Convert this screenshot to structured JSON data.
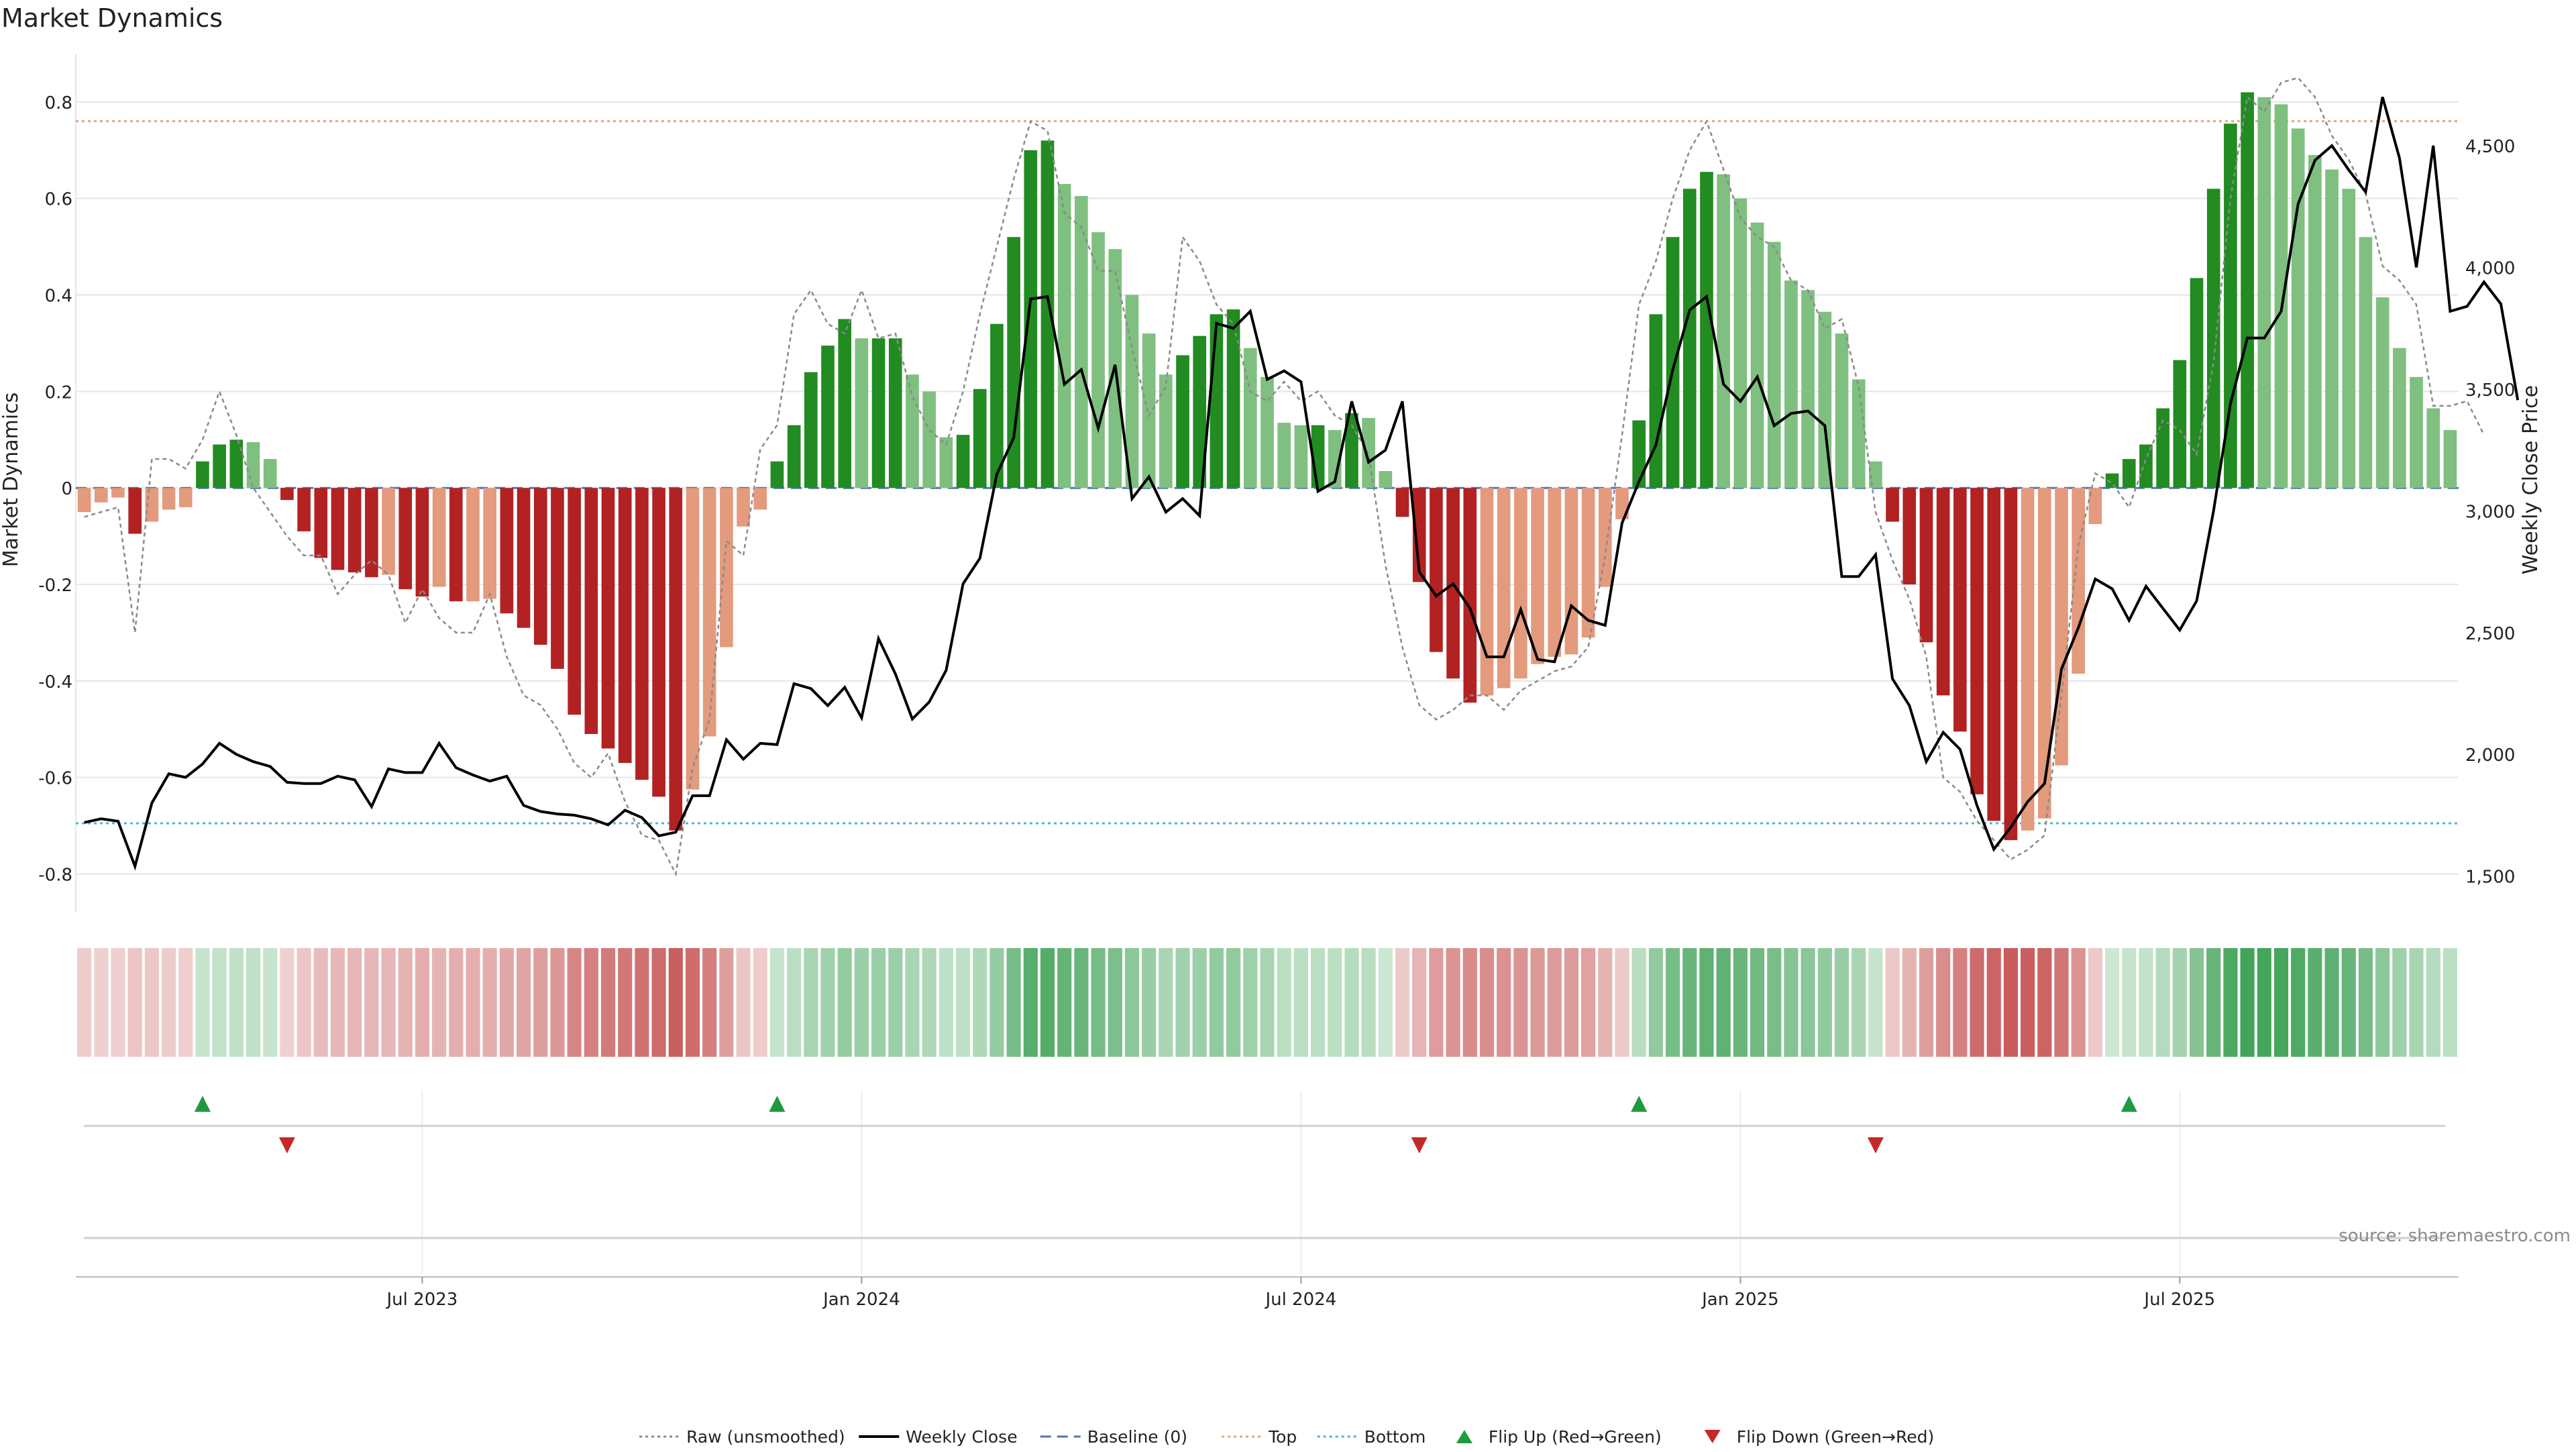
{
  "title": "Market Dynamics",
  "source": "source: sharemaestro.com",
  "colors": {
    "up_strong": "#228b22",
    "up_weak": "#7fbf7f",
    "down_strong": "#b22222",
    "down_weak": "#e39a7d",
    "raw_line": "#8a8a8a",
    "close_line": "#000000",
    "baseline": "#4a78b0",
    "top": "#e8a27c",
    "bottom": "#4fb6c9",
    "flip_up": "#1f9a3f",
    "flip_down": "#c62828"
  },
  "chart_data": {
    "type": "bar",
    "title": "Market Dynamics",
    "ylabel_left": "Market Dynamics",
    "ylabel_right": "Weekly Close Price",
    "ylim_left": [
      -0.88,
      0.9
    ],
    "ylim_right": [
      1350,
      4878
    ],
    "yticks_left": [
      {
        "v": 0.8,
        "label": "0.8"
      },
      {
        "v": 0.6,
        "label": "0.6"
      },
      {
        "v": 0.4,
        "label": "0.4"
      },
      {
        "v": 0.2,
        "label": "0.2"
      },
      {
        "v": 0,
        "label": "0"
      },
      {
        "v": -0.2,
        "label": "-0.2"
      },
      {
        "v": -0.4,
        "label": "-0.4"
      },
      {
        "v": -0.6,
        "label": "-0.6"
      },
      {
        "v": -0.8,
        "label": "-0.8"
      }
    ],
    "yticks_right": [
      {
        "v": 4500,
        "label": "4,500"
      },
      {
        "v": 4000,
        "label": "4,000"
      },
      {
        "v": 3500,
        "label": "3,500"
      },
      {
        "v": 3000,
        "label": "3,000"
      },
      {
        "v": 2500,
        "label": "2,500"
      },
      {
        "v": 2000,
        "label": "2,000"
      },
      {
        "v": 1500,
        "label": "1,500"
      }
    ],
    "xticks": [
      {
        "i": 20,
        "label": "Jul 2023"
      },
      {
        "i": 46,
        "label": "Jan 2024"
      },
      {
        "i": 72,
        "label": "Jul 2024"
      },
      {
        "i": 98,
        "label": "Jan 2025"
      },
      {
        "i": 124,
        "label": "Jul 2025"
      }
    ],
    "top_level": 0.76,
    "bottom_level": -0.695,
    "baseline": 0,
    "smoothed": [
      -0.05,
      -0.03,
      -0.02,
      -0.095,
      -0.07,
      -0.045,
      -0.04,
      0.055,
      0.09,
      0.1,
      0.095,
      0.06,
      -0.025,
      -0.09,
      -0.145,
      -0.17,
      -0.175,
      -0.185,
      -0.18,
      -0.21,
      -0.225,
      -0.205,
      -0.235,
      -0.235,
      -0.23,
      -0.26,
      -0.29,
      -0.325,
      -0.375,
      -0.47,
      -0.51,
      -0.54,
      -0.57,
      -0.605,
      -0.64,
      -0.71,
      -0.625,
      -0.515,
      -0.33,
      -0.08,
      -0.045,
      0.055,
      0.13,
      0.24,
      0.295,
      0.35,
      0.31,
      0.31,
      0.31,
      0.235,
      0.2,
      0.105,
      0.11,
      0.205,
      0.34,
      0.52,
      0.7,
      0.72,
      0.63,
      0.605,
      0.53,
      0.495,
      0.4,
      0.32,
      0.235,
      0.275,
      0.315,
      0.36,
      0.37,
      0.29,
      0.23,
      0.135,
      0.13,
      0.13,
      0.12,
      0.155,
      0.145,
      0.035,
      -0.06,
      -0.195,
      -0.34,
      -0.395,
      -0.445,
      -0.43,
      -0.415,
      -0.395,
      -0.365,
      -0.35,
      -0.345,
      -0.31,
      -0.205,
      -0.065,
      0.14,
      0.36,
      0.52,
      0.62,
      0.655,
      0.65,
      0.6,
      0.55,
      0.51,
      0.43,
      0.41,
      0.365,
      0.32,
      0.225,
      0.055,
      -0.07,
      -0.2,
      -0.32,
      -0.43,
      -0.505,
      -0.635,
      -0.69,
      -0.73,
      -0.71,
      -0.685,
      -0.575,
      -0.385,
      -0.075,
      0.03,
      0.06,
      0.09,
      0.165,
      0.265,
      0.435,
      0.62,
      0.755,
      0.82,
      0.81,
      0.795,
      0.745,
      0.69,
      0.66,
      0.62,
      0.52,
      0.395,
      0.29,
      0.23,
      0.165,
      0.12
    ],
    "raw": [
      -0.06,
      -0.05,
      -0.04,
      -0.3,
      0.06,
      0.06,
      0.04,
      0.1,
      0.2,
      0.11,
      0.0,
      -0.05,
      -0.1,
      -0.14,
      -0.14,
      -0.22,
      -0.18,
      -0.15,
      -0.18,
      -0.28,
      -0.21,
      -0.27,
      -0.3,
      -0.3,
      -0.22,
      -0.35,
      -0.43,
      -0.45,
      -0.5,
      -0.57,
      -0.6,
      -0.55,
      -0.65,
      -0.72,
      -0.73,
      -0.8,
      -0.58,
      -0.48,
      -0.11,
      -0.14,
      0.08,
      0.13,
      0.36,
      0.41,
      0.34,
      0.32,
      0.41,
      0.31,
      0.32,
      0.19,
      0.12,
      0.09,
      0.2,
      0.36,
      0.5,
      0.64,
      0.76,
      0.74,
      0.57,
      0.54,
      0.45,
      0.45,
      0.29,
      0.15,
      0.21,
      0.52,
      0.47,
      0.38,
      0.34,
      0.2,
      0.18,
      0.22,
      0.18,
      0.2,
      0.15,
      0.13,
      0.07,
      -0.16,
      -0.33,
      -0.45,
      -0.48,
      -0.46,
      -0.43,
      -0.43,
      -0.46,
      -0.42,
      -0.4,
      -0.38,
      -0.37,
      -0.33,
      -0.14,
      0.11,
      0.38,
      0.47,
      0.6,
      0.7,
      0.76,
      0.66,
      0.56,
      0.52,
      0.5,
      0.43,
      0.41,
      0.33,
      0.35,
      0.21,
      -0.05,
      -0.15,
      -0.23,
      -0.35,
      -0.6,
      -0.63,
      -0.69,
      -0.73,
      -0.77,
      -0.75,
      -0.72,
      -0.43,
      -0.12,
      0.03,
      0.01,
      -0.04,
      0.06,
      0.14,
      0.12,
      0.07,
      0.26,
      0.6,
      0.81,
      0.78,
      0.84,
      0.85,
      0.81,
      0.73,
      0.68,
      0.61,
      0.46,
      0.43,
      0.38,
      0.17,
      0.17,
      0.18,
      0.11
    ],
    "close": [
      1720,
      1735,
      1725,
      1540,
      1800,
      1920,
      1905,
      1960,
      2045,
      2000,
      1970,
      1950,
      1885,
      1880,
      1880,
      1910,
      1895,
      1785,
      1940,
      1925,
      1925,
      2045,
      1945,
      1915,
      1890,
      1910,
      1790,
      1765,
      1755,
      1750,
      1735,
      1710,
      1770,
      1740,
      1665,
      1680,
      1830,
      1830,
      2060,
      1980,
      2045,
      2040,
      2290,
      2270,
      2200,
      2275,
      2150,
      2475,
      2330,
      2145,
      2215,
      2345,
      2700,
      2805,
      3150,
      3300,
      3870,
      3880,
      3520,
      3580,
      3340,
      3600,
      3050,
      3140,
      2995,
      3050,
      2980,
      3770,
      3750,
      3820,
      3540,
      3575,
      3530,
      3080,
      3120,
      3450,
      3200,
      3250,
      3450,
      2750,
      2650,
      2700,
      2600,
      2400,
      2400,
      2595,
      2390,
      2380,
      2610,
      2550,
      2530,
      2950,
      3120,
      3270,
      3580,
      3825,
      3880,
      3520,
      3450,
      3550,
      3350,
      3400,
      3410,
      3350,
      2730,
      2730,
      2820,
      2310,
      2200,
      1970,
      2090,
      2020,
      1790,
      1610,
      1700,
      1805,
      1880,
      2350,
      2520,
      2720,
      2680,
      2550,
      2690,
      2600,
      2510,
      2630,
      3000,
      3440,
      3710,
      3710,
      3820,
      4260,
      4440,
      4500,
      4400,
      4310,
      4700,
      4450,
      4000,
      4500,
      3820,
      3840,
      3940,
      3850,
      3455
    ],
    "flip_up": [
      7,
      41,
      92,
      121
    ],
    "flip_down": [
      12,
      79,
      106
    ]
  },
  "legend": [
    {
      "key": "raw",
      "label": "Raw (unsmoothed)",
      "marker": "dotted-line"
    },
    {
      "key": "close",
      "label": "Weekly Close",
      "marker": "solid-line"
    },
    {
      "key": "baseline",
      "label": "Baseline (0)",
      "marker": "dashed-line"
    },
    {
      "key": "top",
      "label": "Top",
      "marker": "dotted-line"
    },
    {
      "key": "bottom",
      "label": "Bottom",
      "marker": "dotted-line"
    },
    {
      "key": "flip_up",
      "label": "Flip Up (Red→Green)",
      "marker": "triangle-up"
    },
    {
      "key": "flip_down",
      "label": "Flip Down (Green→Red)",
      "marker": "triangle-down"
    }
  ]
}
